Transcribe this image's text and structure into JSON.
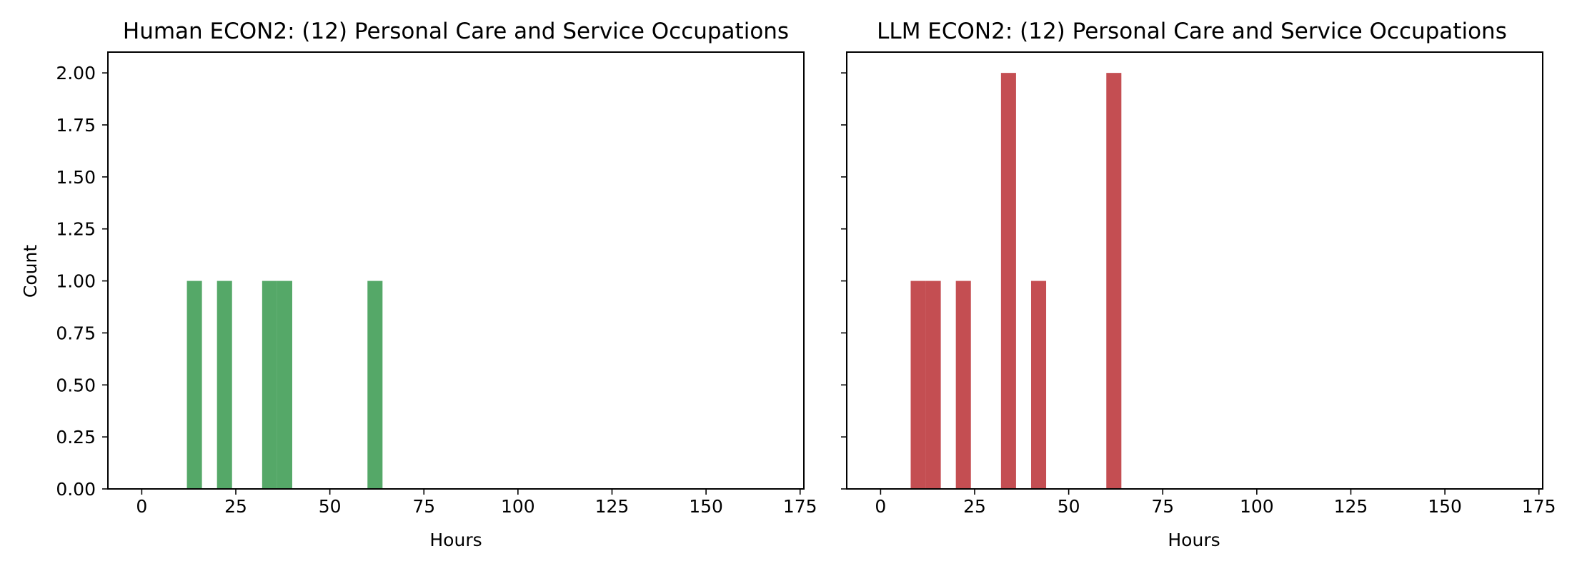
{
  "colors": {
    "human_bars": "#55a868",
    "llm_bars": "#c44e52",
    "axes": "#000000"
  },
  "y_ticks": [
    "0.00",
    "0.25",
    "0.50",
    "0.75",
    "1.00",
    "1.25",
    "1.50",
    "1.75",
    "2.00"
  ],
  "x_ticks": [
    "0",
    "25",
    "50",
    "75",
    "100",
    "125",
    "150",
    "175"
  ],
  "chart_data": [
    {
      "type": "bar",
      "title": "Human ECON2: (12) Personal Care and Service Occupations",
      "xlabel": "Hours",
      "ylabel": "Count",
      "xlim": [
        -9,
        176
      ],
      "ylim": [
        0,
        2.1
      ],
      "x_ticks": [
        0,
        25,
        50,
        75,
        100,
        125,
        150,
        175
      ],
      "y_ticks": [
        0,
        0.25,
        0.5,
        0.75,
        1.0,
        1.25,
        1.5,
        1.75,
        2.0
      ],
      "bar_width": 4,
      "color": "#55a868",
      "grid": false,
      "bars": [
        {
          "x": 12,
          "value": 1
        },
        {
          "x": 20,
          "value": 1
        },
        {
          "x": 32,
          "value": 1
        },
        {
          "x": 36,
          "value": 1
        },
        {
          "x": 60,
          "value": 1
        }
      ]
    },
    {
      "type": "bar",
      "title": "LLM ECON2: (12) Personal Care and Service Occupations",
      "xlabel": "Hours",
      "ylabel": "",
      "xlim": [
        -9,
        176
      ],
      "ylim": [
        0,
        2.1
      ],
      "x_ticks": [
        0,
        25,
        50,
        75,
        100,
        125,
        150,
        175
      ],
      "y_ticks": [
        0,
        0.25,
        0.5,
        0.75,
        1.0,
        1.25,
        1.5,
        1.75,
        2.0
      ],
      "bar_width": 4,
      "color": "#c44e52",
      "grid": false,
      "bars": [
        {
          "x": 8,
          "value": 1
        },
        {
          "x": 12,
          "value": 1
        },
        {
          "x": 20,
          "value": 1
        },
        {
          "x": 32,
          "value": 2
        },
        {
          "x": 40,
          "value": 1
        },
        {
          "x": 60,
          "value": 2
        }
      ]
    }
  ]
}
